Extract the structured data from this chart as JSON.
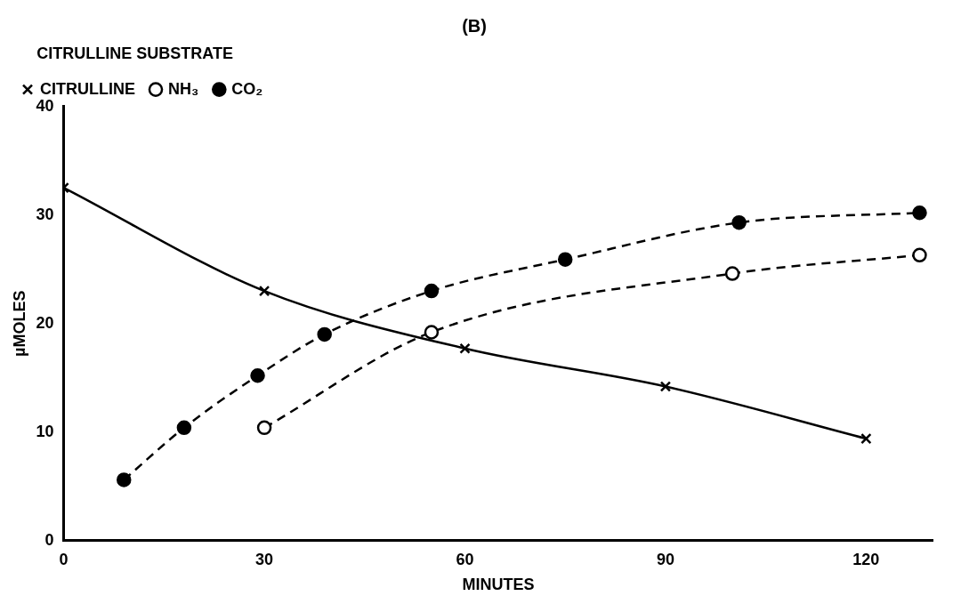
{
  "chart_data": {
    "type": "line",
    "title": "(B)",
    "xlabel": "MINUTES",
    "ylabel": "µMOLES",
    "legend_title": "CITRULLINE SUBSTRATE",
    "legend": "top left",
    "grid": false,
    "xlim": [
      0,
      130
    ],
    "xticks": [
      0,
      30,
      60,
      90,
      120
    ],
    "ylim": [
      0,
      40
    ],
    "yticks": [
      0,
      10,
      20,
      30,
      40
    ],
    "series": [
      {
        "name": "CITRULLINE",
        "color": "#000000",
        "marker": "cross",
        "line_style": "solid",
        "x": [
          0,
          30,
          60,
          90,
          120
        ],
        "values": [
          32.5,
          23,
          17.7,
          14.2,
          9.4
        ]
      },
      {
        "name": "NH₃",
        "color": "#000000",
        "marker": "circle",
        "line_style": "dashed",
        "x": [
          30,
          55,
          100,
          128
        ],
        "values": [
          10.4,
          19.2,
          24.6,
          26.3
        ]
      },
      {
        "name": "CO₂",
        "color": "#000000",
        "marker": "circle",
        "line_style": "dashed",
        "x": [
          9,
          18,
          29,
          39,
          55,
          75,
          101,
          128
        ],
        "values": [
          5.6,
          10.4,
          15.2,
          19,
          23,
          25.9,
          29.3,
          30.2
        ]
      }
    ]
  }
}
